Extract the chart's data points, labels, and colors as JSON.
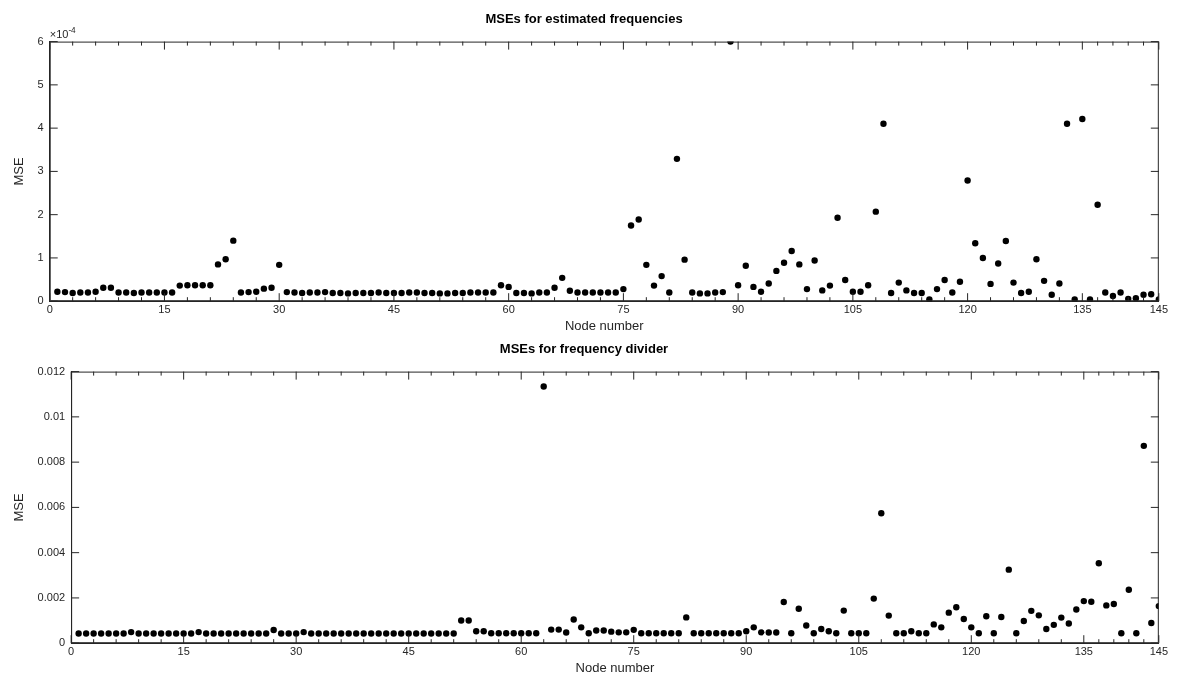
{
  "chart_data": [
    {
      "type": "scatter",
      "title": "MSEs for estimated frequencies",
      "xlabel": "Node number",
      "ylabel": "MSE",
      "annotations": [
        "×10$^{-4}$"
      ],
      "marker": "circle",
      "grid": false,
      "legend": false,
      "xlim": [
        0,
        145
      ],
      "xticks": [
        0,
        {
          "value": 3,
          "label": null
        },
        {
          "value": 6,
          "label": null
        },
        {
          "value": 9,
          "label": null
        },
        {
          "value": 12,
          "label": null
        },
        15,
        {
          "value": 18,
          "label": null
        },
        {
          "value": 21,
          "label": null
        },
        {
          "value": 24,
          "label": null
        },
        {
          "value": 27,
          "label": null
        },
        30,
        {
          "value": 33,
          "label": null
        },
        {
          "value": 36,
          "label": null
        },
        {
          "value": 39,
          "label": null
        },
        {
          "value": 42,
          "label": null
        },
        45,
        {
          "value": 48,
          "label": null
        },
        {
          "value": 51,
          "label": null
        },
        {
          "value": 54,
          "label": null
        },
        {
          "value": 57,
          "label": null
        },
        60,
        {
          "value": 63,
          "label": null
        },
        {
          "value": 66,
          "label": null
        },
        {
          "value": 69,
          "label": null
        },
        {
          "value": 72,
          "label": null
        },
        75,
        {
          "value": 78,
          "label": null
        },
        {
          "value": 81,
          "label": null
        },
        {
          "value": 84,
          "label": null
        },
        {
          "value": 87,
          "label": null
        },
        90,
        {
          "value": 93,
          "label": null
        },
        {
          "value": 96,
          "label": null
        },
        {
          "value": 99,
          "label": null
        },
        {
          "value": 102,
          "label": null
        },
        105,
        {
          "value": 108,
          "label": null
        },
        {
          "value": 111,
          "label": null
        },
        {
          "value": 114,
          "label": null
        },
        {
          "value": 117,
          "label": null
        },
        120,
        {
          "value": 123,
          "label": null
        },
        {
          "value": 126,
          "label": null
        },
        {
          "value": 129,
          "label": null
        },
        {
          "value": 132,
          "label": null
        },
        135,
        {
          "value": 137,
          "label": null
        },
        {
          "value": 139,
          "label": null
        },
        {
          "value": 141,
          "label": null
        },
        {
          "value": 143,
          "label": null
        },
        145
      ],
      "ylim": [
        0,
        6
      ],
      "yticks": [
        0,
        1,
        2,
        3,
        4,
        5,
        6
      ],
      "x": [
        1,
        2,
        3,
        4,
        5,
        6,
        7,
        8,
        9,
        10,
        11,
        12,
        13,
        14,
        15,
        16,
        17,
        18,
        19,
        20,
        21,
        22,
        23,
        24,
        25,
        26,
        27,
        28,
        29,
        30,
        31,
        32,
        33,
        34,
        35,
        36,
        37,
        38,
        39,
        40,
        41,
        42,
        43,
        44,
        45,
        46,
        47,
        48,
        49,
        50,
        51,
        52,
        53,
        54,
        55,
        56,
        57,
        58,
        59,
        60,
        61,
        62,
        63,
        64,
        65,
        66,
        67,
        68,
        69,
        70,
        71,
        72,
        73,
        74,
        75,
        76,
        77,
        78,
        79,
        80,
        81,
        82,
        83,
        84,
        85,
        86,
        87,
        88,
        89,
        90,
        91,
        92,
        93,
        94,
        95,
        96,
        97,
        98,
        99,
        100,
        101,
        102,
        103,
        104,
        105,
        106,
        107,
        108,
        109,
        110,
        111,
        112,
        113,
        114,
        115,
        116,
        117,
        118,
        119,
        120,
        121,
        122,
        123,
        124,
        125,
        126,
        127,
        128,
        129,
        130,
        131,
        132,
        133,
        134,
        135,
        136,
        137,
        138,
        139,
        140,
        141,
        142,
        143,
        144,
        145
      ],
      "series": [
        {
          "color": "#000000",
          "values": [
            0.22,
            0.21,
            0.19,
            0.2,
            0.2,
            0.22,
            0.31,
            0.31,
            0.2,
            0.2,
            0.19,
            0.2,
            0.2,
            0.2,
            0.2,
            0.2,
            0.36,
            0.37,
            0.37,
            0.37,
            0.37,
            0.85,
            0.97,
            1.4,
            0.2,
            0.21,
            0.22,
            0.29,
            0.31,
            0.84,
            0.21,
            0.2,
            0.19,
            0.2,
            0.2,
            0.21,
            0.19,
            0.19,
            0.18,
            0.19,
            0.19,
            0.19,
            0.2,
            0.19,
            0.19,
            0.19,
            0.2,
            0.2,
            0.19,
            0.19,
            0.18,
            0.18,
            0.19,
            0.19,
            0.2,
            0.2,
            0.2,
            0.2,
            0.37,
            0.33,
            0.19,
            0.19,
            0.18,
            0.2,
            0.2,
            0.31,
            0.54,
            0.24,
            0.2,
            0.2,
            0.2,
            0.2,
            0.2,
            0.2,
            0.28,
            1.75,
            1.89,
            0.84,
            0.36,
            0.58,
            0.2,
            3.29,
            0.96,
            0.2,
            0.18,
            0.18,
            0.2,
            0.21,
            6,
            0.37,
            0.82,
            0.33,
            0.22,
            0.41,
            0.7,
            0.89,
            1.16,
            0.85,
            0.28,
            0.94,
            0.25,
            0.36,
            1.93,
            0.49,
            0.22,
            0.22,
            0.37,
            2.07,
            4.1,
            0.19,
            0.43,
            0.25,
            0.19,
            0.19,
            0.04,
            0.28,
            0.49,
            0.2,
            0.45,
            2.79,
            1.34,
            1,
            0.4,
            0.87,
            1.39,
            0.43,
            0.19,
            0.22,
            0.97,
            0.47,
            0.15,
            0.41,
            4.1,
            0.04,
            4.21,
            0.04,
            2.23,
            0.2,
            0.12,
            0.2,
            0.05,
            0.07,
            0.15,
            0.16,
            0.04
          ]
        }
      ]
    },
    {
      "type": "scatter",
      "title": "MSEs for frequency divider",
      "xlabel": "Node number",
      "ylabel": "MSE",
      "marker": "circle",
      "grid": false,
      "legend": false,
      "xlim": [
        0,
        145
      ],
      "xticks": [
        0,
        {
          "value": 3,
          "label": null
        },
        {
          "value": 6,
          "label": null
        },
        {
          "value": 9,
          "label": null
        },
        {
          "value": 12,
          "label": null
        },
        15,
        {
          "value": 18,
          "label": null
        },
        {
          "value": 21,
          "label": null
        },
        {
          "value": 24,
          "label": null
        },
        {
          "value": 27,
          "label": null
        },
        30,
        {
          "value": 33,
          "label": null
        },
        {
          "value": 36,
          "label": null
        },
        {
          "value": 39,
          "label": null
        },
        {
          "value": 42,
          "label": null
        },
        45,
        {
          "value": 48,
          "label": null
        },
        {
          "value": 51,
          "label": null
        },
        {
          "value": 54,
          "label": null
        },
        {
          "value": 57,
          "label": null
        },
        60,
        {
          "value": 63,
          "label": null
        },
        {
          "value": 66,
          "label": null
        },
        {
          "value": 69,
          "label": null
        },
        {
          "value": 72,
          "label": null
        },
        75,
        {
          "value": 78,
          "label": null
        },
        {
          "value": 81,
          "label": null
        },
        {
          "value": 84,
          "label": null
        },
        {
          "value": 87,
          "label": null
        },
        90,
        {
          "value": 93,
          "label": null
        },
        {
          "value": 96,
          "label": null
        },
        {
          "value": 99,
          "label": null
        },
        {
          "value": 102,
          "label": null
        },
        105,
        {
          "value": 108,
          "label": null
        },
        {
          "value": 111,
          "label": null
        },
        {
          "value": 114,
          "label": null
        },
        {
          "value": 117,
          "label": null
        },
        120,
        {
          "value": 123,
          "label": null
        },
        {
          "value": 126,
          "label": null
        },
        {
          "value": 129,
          "label": null
        },
        {
          "value": 132,
          "label": null
        },
        135,
        {
          "value": 137,
          "label": null
        },
        {
          "value": 139,
          "label": null
        },
        {
          "value": 141,
          "label": null
        },
        {
          "value": 143,
          "label": null
        },
        145
      ],
      "ylim": [
        0,
        0.012
      ],
      "yticks": [
        0,
        0.002,
        0.004,
        0.006,
        0.008,
        0.01,
        0.012
      ],
      "x": [
        1,
        2,
        3,
        4,
        5,
        6,
        7,
        8,
        9,
        10,
        11,
        12,
        13,
        14,
        15,
        16,
        17,
        18,
        19,
        20,
        21,
        22,
        23,
        24,
        25,
        26,
        27,
        28,
        29,
        30,
        31,
        32,
        33,
        34,
        35,
        36,
        37,
        38,
        39,
        40,
        41,
        42,
        43,
        44,
        45,
        46,
        47,
        48,
        49,
        50,
        51,
        52,
        53,
        54,
        55,
        56,
        57,
        58,
        59,
        60,
        61,
        62,
        63,
        64,
        65,
        66,
        67,
        68,
        69,
        70,
        71,
        72,
        73,
        74,
        75,
        76,
        77,
        78,
        79,
        80,
        81,
        82,
        83,
        84,
        85,
        86,
        87,
        88,
        89,
        90,
        91,
        92,
        93,
        94,
        95,
        96,
        97,
        98,
        99,
        100,
        101,
        102,
        103,
        104,
        105,
        106,
        107,
        108,
        109,
        110,
        111,
        112,
        113,
        114,
        115,
        116,
        117,
        118,
        119,
        120,
        121,
        122,
        123,
        124,
        125,
        126,
        127,
        128,
        129,
        130,
        131,
        132,
        133,
        134,
        135,
        136,
        137,
        138,
        139,
        140,
        141,
        142,
        143,
        144,
        145
      ],
      "series": [
        {
          "color": "#000000",
          "values": [
            0.00043,
            0.00043,
            0.00043,
            0.00043,
            0.00043,
            0.00043,
            0.00043,
            0.00049,
            0.00043,
            0.00043,
            0.00043,
            0.00043,
            0.00043,
            0.00043,
            0.00043,
            0.00043,
            0.00049,
            0.00043,
            0.00043,
            0.00043,
            0.00043,
            0.00043,
            0.00043,
            0.00043,
            0.00043,
            0.00043,
            0.00058,
            0.00043,
            0.00043,
            0.00043,
            0.00049,
            0.00043,
            0.00043,
            0.00043,
            0.00043,
            0.00043,
            0.00043,
            0.00043,
            0.00043,
            0.00043,
            0.00043,
            0.00043,
            0.00043,
            0.00043,
            0.00043,
            0.00043,
            0.00043,
            0.00043,
            0.00043,
            0.00043,
            0.00043,
            0.001,
            0.001,
            0.00053,
            0.00053,
            0.00044,
            0.00044,
            0.00044,
            0.00044,
            0.00044,
            0.00044,
            0.00044,
            0.01134,
            0.0006,
            0.0006,
            0.00047,
            0.00105,
            0.0007,
            0.00044,
            0.00056,
            0.00056,
            0.00051,
            0.00048,
            0.00048,
            0.00059,
            0.00044,
            0.00044,
            0.00044,
            0.00044,
            0.00044,
            0.00044,
            0.00114,
            0.00044,
            0.00044,
            0.00044,
            0.00044,
            0.00044,
            0.00044,
            0.00044,
            0.00053,
            0.0007,
            0.00048,
            0.00047,
            0.00047,
            0.00182,
            0.00044,
            0.00152,
            0.00078,
            0.00044,
            0.00063,
            0.00053,
            0.00044,
            0.00144,
            0.00044,
            0.00044,
            0.00044,
            0.00197,
            0.00574,
            0.00122,
            0.00044,
            0.00044,
            0.00053,
            0.00044,
            0.00044,
            0.00083,
            0.0007,
            0.00135,
            0.00159,
            0.00107,
            0.0007,
            0.00044,
            0.00119,
            0.00044,
            0.00116,
            0.00325,
            0.00044,
            0.00098,
            0.00143,
            0.00123,
            0.00063,
            0.00081,
            0.00113,
            0.00087,
            0.00149,
            0.00186,
            0.00183,
            0.00353,
            0.00167,
            0.00173,
            0.00044,
            0.00236,
            0.00044,
            0.00872,
            0.00089,
            0.00164
          ]
        }
      ]
    }
  ]
}
